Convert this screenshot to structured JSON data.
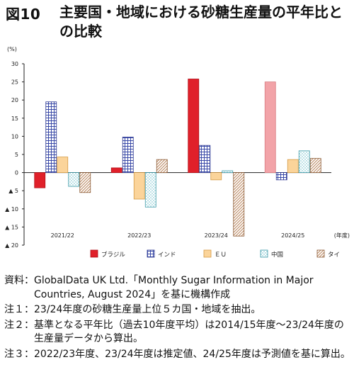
{
  "figure": {
    "label": "図10",
    "title": "主要国・地域における砂糖生産量の平年比との比較"
  },
  "chart_data": {
    "type": "bar",
    "y_unit_label": "(%)",
    "x_unit_label": "(年度)",
    "categories": [
      "2021/22",
      "2022/23",
      "2023/24",
      "2024/25"
    ],
    "ylim": [
      -20,
      30
    ],
    "yticks": [
      30,
      25,
      20,
      15,
      10,
      5,
      0,
      -5,
      -10,
      -15,
      -20
    ],
    "ytick_labels": [
      "30",
      "25",
      "20",
      "15",
      "10",
      "5",
      "0",
      "▲ 5",
      "▲ 10",
      "▲ 15",
      "▲ 20"
    ],
    "grid": false,
    "legend_position": "bottom",
    "series": [
      {
        "name": "ブラジル",
        "pattern": "solid-red",
        "color": "#e0202a",
        "values": [
          -4.2,
          1.3,
          25.8,
          25.0
        ],
        "highlight_last": "#f2a3a8"
      },
      {
        "name": "インド",
        "pattern": "grid",
        "color": "#3a4aa8",
        "values": [
          19.5,
          9.8,
          7.5,
          -2.0
        ]
      },
      {
        "name": "ＥＵ",
        "pattern": "solid-orange",
        "color": "#fbd49a",
        "values": [
          4.3,
          -7.3,
          -2.0,
          3.6
        ]
      },
      {
        "name": "中国",
        "pattern": "dots",
        "color": "#5db7c4",
        "values": [
          -3.8,
          -9.5,
          0.5,
          6.0
        ]
      },
      {
        "name": "タイ",
        "pattern": "diagonal",
        "color": "#b8835a",
        "values": [
          -5.5,
          3.6,
          -17.5,
          3.9
        ]
      }
    ]
  },
  "notes": [
    {
      "label": "資料：",
      "text": "GlobalData UK Ltd.「Monthly Sugar Information in Major Countries, August 2024」を基に機構作成"
    },
    {
      "label": "注１：",
      "text": "23/24年度の砂糖生産量上位５カ国・地域を抽出。"
    },
    {
      "label": "注２：",
      "text": "基準となる平年比（過去10年度平均）は2014/15年度～23/24年度の生産量データから算出。"
    },
    {
      "label": "注３：",
      "text": "2022/23年度、23/24年度は推定値、24/25年度は予測値を基に算出。"
    }
  ]
}
